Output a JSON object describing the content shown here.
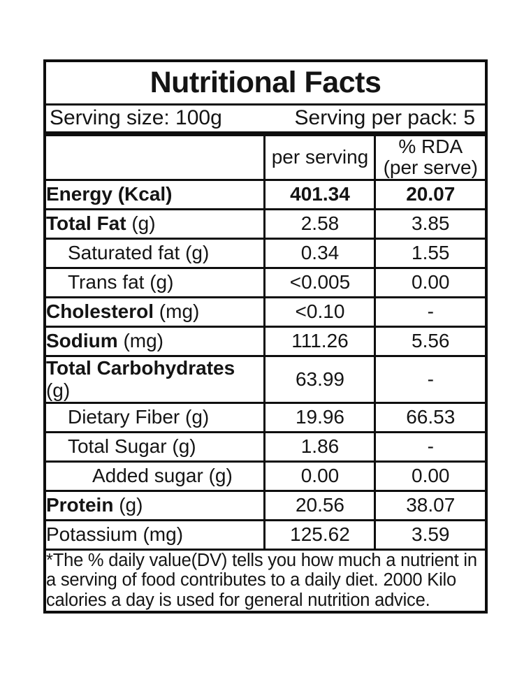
{
  "title": "Nutritional Facts",
  "serving": {
    "size_label": "Serving size: 100g",
    "pack_label": "Serving per pack: 5"
  },
  "columns": {
    "per_serving": "per serving",
    "rda_line1": "% RDA",
    "rda_line2": "(per serve)"
  },
  "rows": [
    {
      "name": "Energy",
      "unit": "(Kcal)",
      "per_serving": "401.34",
      "rda": "20.07",
      "indent": 0,
      "name_bold": true,
      "unit_bold": true,
      "values_bold": true
    },
    {
      "name": "Total Fat",
      "unit": "(g)",
      "per_serving": "2.58",
      "rda": "3.85",
      "indent": 0,
      "name_bold": true,
      "unit_bold": false,
      "values_bold": false
    },
    {
      "name": "Saturated fat",
      "unit": "(g)",
      "per_serving": "0.34",
      "rda": "1.55",
      "indent": 1,
      "name_bold": false,
      "unit_bold": false,
      "values_bold": false
    },
    {
      "name": "Trans fat",
      "unit": "(g)",
      "per_serving": "<0.005",
      "rda": "0.00",
      "indent": 1,
      "name_bold": false,
      "unit_bold": false,
      "values_bold": false
    },
    {
      "name": "Cholesterol",
      "unit": "(mg)",
      "per_serving": "<0.10",
      "rda": "-",
      "indent": 0,
      "name_bold": true,
      "unit_bold": false,
      "values_bold": false
    },
    {
      "name": "Sodium",
      "unit": "(mg)",
      "per_serving": "111.26",
      "rda": "5.56",
      "indent": 0,
      "name_bold": true,
      "unit_bold": false,
      "values_bold": false
    },
    {
      "name": "Total Carbohydrates",
      "unit": "(g)",
      "per_serving": "63.99",
      "rda": "-",
      "indent": 0,
      "name_bold": true,
      "unit_bold": false,
      "values_bold": false
    },
    {
      "name": "Dietary Fiber",
      "unit": "(g)",
      "per_serving": "19.96",
      "rda": "66.53",
      "indent": 1,
      "name_bold": false,
      "unit_bold": false,
      "values_bold": false
    },
    {
      "name": "Total Sugar",
      "unit": "(g)",
      "per_serving": "1.86",
      "rda": "-",
      "indent": 1,
      "name_bold": false,
      "unit_bold": false,
      "values_bold": false
    },
    {
      "name": "Added sugar",
      "unit": "(g)",
      "per_serving": "0.00",
      "rda": "0.00",
      "indent": 2,
      "name_bold": false,
      "unit_bold": false,
      "values_bold": false
    },
    {
      "name": "Protein",
      "unit": "(g)",
      "per_serving": "20.56",
      "rda": "38.07",
      "indent": 0,
      "name_bold": true,
      "unit_bold": false,
      "values_bold": false
    },
    {
      "name": "Potassium",
      "unit": "(mg)",
      "per_serving": "125.62",
      "rda": "3.59",
      "indent": 0,
      "name_bold": false,
      "unit_bold": false,
      "values_bold": false
    }
  ],
  "footnote": "*The % daily value(DV) tells you how much a nutrient in a serving of food contributes to a daily diet. 2000 Kilo calories a day is used for general nutrition advice.",
  "colors": {
    "text": "#141414",
    "border": "#0e0e0e",
    "background": "#ffffff"
  }
}
